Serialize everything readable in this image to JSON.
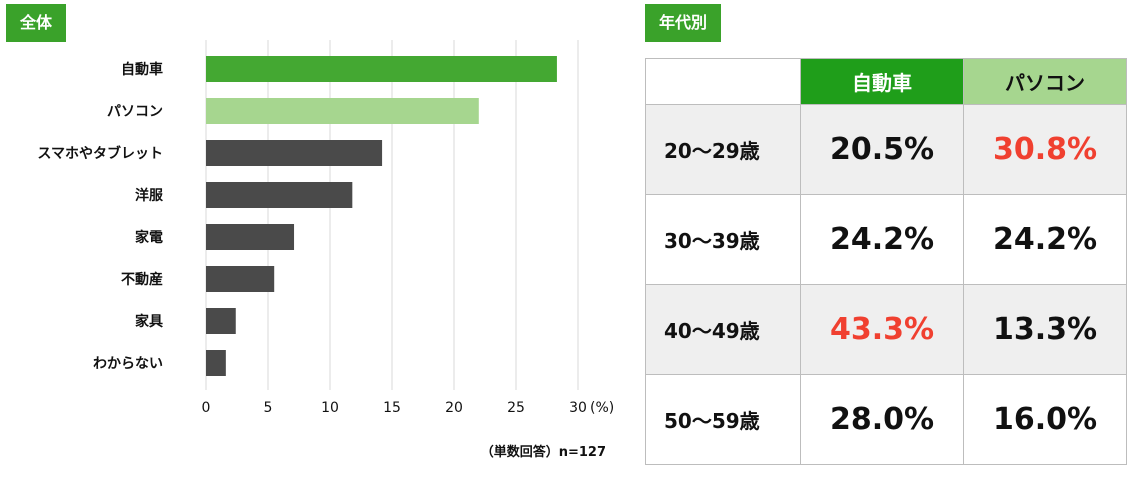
{
  "left_tag": "全体",
  "right_tag": "年代別",
  "note": "（単数回答）n=127",
  "colors": {
    "car": "#44a832",
    "pc": "#a6d68f",
    "other": "#4a4a4a",
    "header_car": "#1f9e1a",
    "header_pc": "#a6d68f",
    "highlight": "#f04030",
    "grid": "#d9d9d9"
  },
  "chart_data": {
    "type": "bar",
    "orientation": "horizontal",
    "categories": [
      "自動車",
      "パソコン",
      "スマホやタブレット",
      "洋服",
      "家電",
      "不動産",
      "家具",
      "わからない"
    ],
    "values": [
      28.3,
      22.0,
      14.2,
      11.8,
      7.1,
      5.5,
      2.4,
      1.6
    ],
    "xlim": [
      0,
      30
    ],
    "xticks": [
      "0",
      "5",
      "10",
      "15",
      "20",
      "25",
      "30"
    ],
    "x_unit": "(%)",
    "grid": true
  },
  "table": {
    "headers": [
      "",
      "自動車",
      "パソコン"
    ],
    "rows": [
      {
        "age": "20〜29歳",
        "car": "20.5%",
        "pc": "30.8%",
        "highlight": "pc"
      },
      {
        "age": "30〜39歳",
        "car": "24.2%",
        "pc": "24.2%",
        "highlight": ""
      },
      {
        "age": "40〜49歳",
        "car": "43.3%",
        "pc": "13.3%",
        "highlight": "car"
      },
      {
        "age": "50〜59歳",
        "car": "28.0%",
        "pc": "16.0%",
        "highlight": ""
      }
    ]
  }
}
